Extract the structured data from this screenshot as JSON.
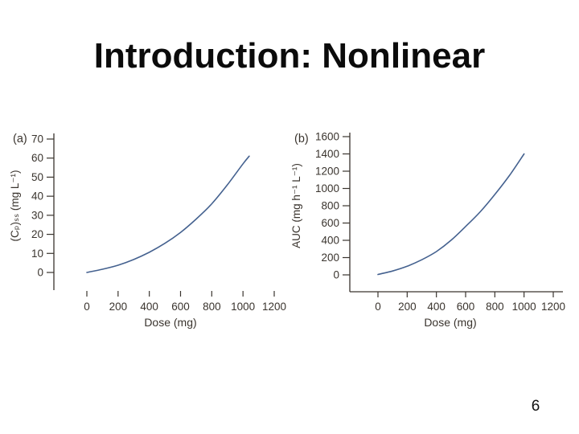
{
  "slide": {
    "title": "Introduction: Nonlinear",
    "page_number": "6"
  },
  "colors": {
    "curve": "#44618f",
    "axis": "#3a342e",
    "figure_text": "#3a342e",
    "title_text": "#0b0b0b",
    "background": "#ffffff"
  },
  "chart_data": [
    {
      "id": "a",
      "type": "line",
      "panel_label": "(a)",
      "xlabel": "Dose (mg)",
      "ylabel": "(Cₚ)ₛₛ (mg L⁻¹)",
      "xlim": [
        0,
        1200
      ],
      "ylim": [
        0,
        70
      ],
      "x_ticks": [
        0,
        200,
        400,
        600,
        800,
        1000,
        1200
      ],
      "y_ticks": [
        0,
        10,
        20,
        30,
        40,
        50,
        60,
        70
      ],
      "grid": false,
      "legend": false,
      "show_x_axis_line": false,
      "show_y_axis_line": true,
      "x": [
        0,
        100,
        200,
        300,
        400,
        500,
        600,
        700,
        800,
        900,
        1000,
        1040
      ],
      "y": [
        0,
        1.7,
        3.8,
        6.8,
        10.6,
        15.3,
        21,
        28,
        36,
        46,
        57,
        61
      ]
    },
    {
      "id": "b",
      "type": "line",
      "panel_label": "(b)",
      "xlabel": "Dose (mg)",
      "ylabel": "AUC (mg h⁻¹ L⁻¹)",
      "xlim": [
        0,
        1200
      ],
      "ylim": [
        0,
        1600
      ],
      "x_ticks": [
        0,
        200,
        400,
        600,
        800,
        1000,
        1200
      ],
      "y_ticks": [
        0,
        200,
        400,
        600,
        800,
        1000,
        1200,
        1400,
        1600
      ],
      "grid": false,
      "legend": false,
      "show_x_axis_line": true,
      "show_y_axis_line": true,
      "x": [
        0,
        100,
        200,
        300,
        400,
        500,
        600,
        700,
        800,
        900,
        1000
      ],
      "y": [
        5,
        45,
        100,
        175,
        270,
        400,
        560,
        730,
        930,
        1150,
        1400
      ]
    }
  ]
}
